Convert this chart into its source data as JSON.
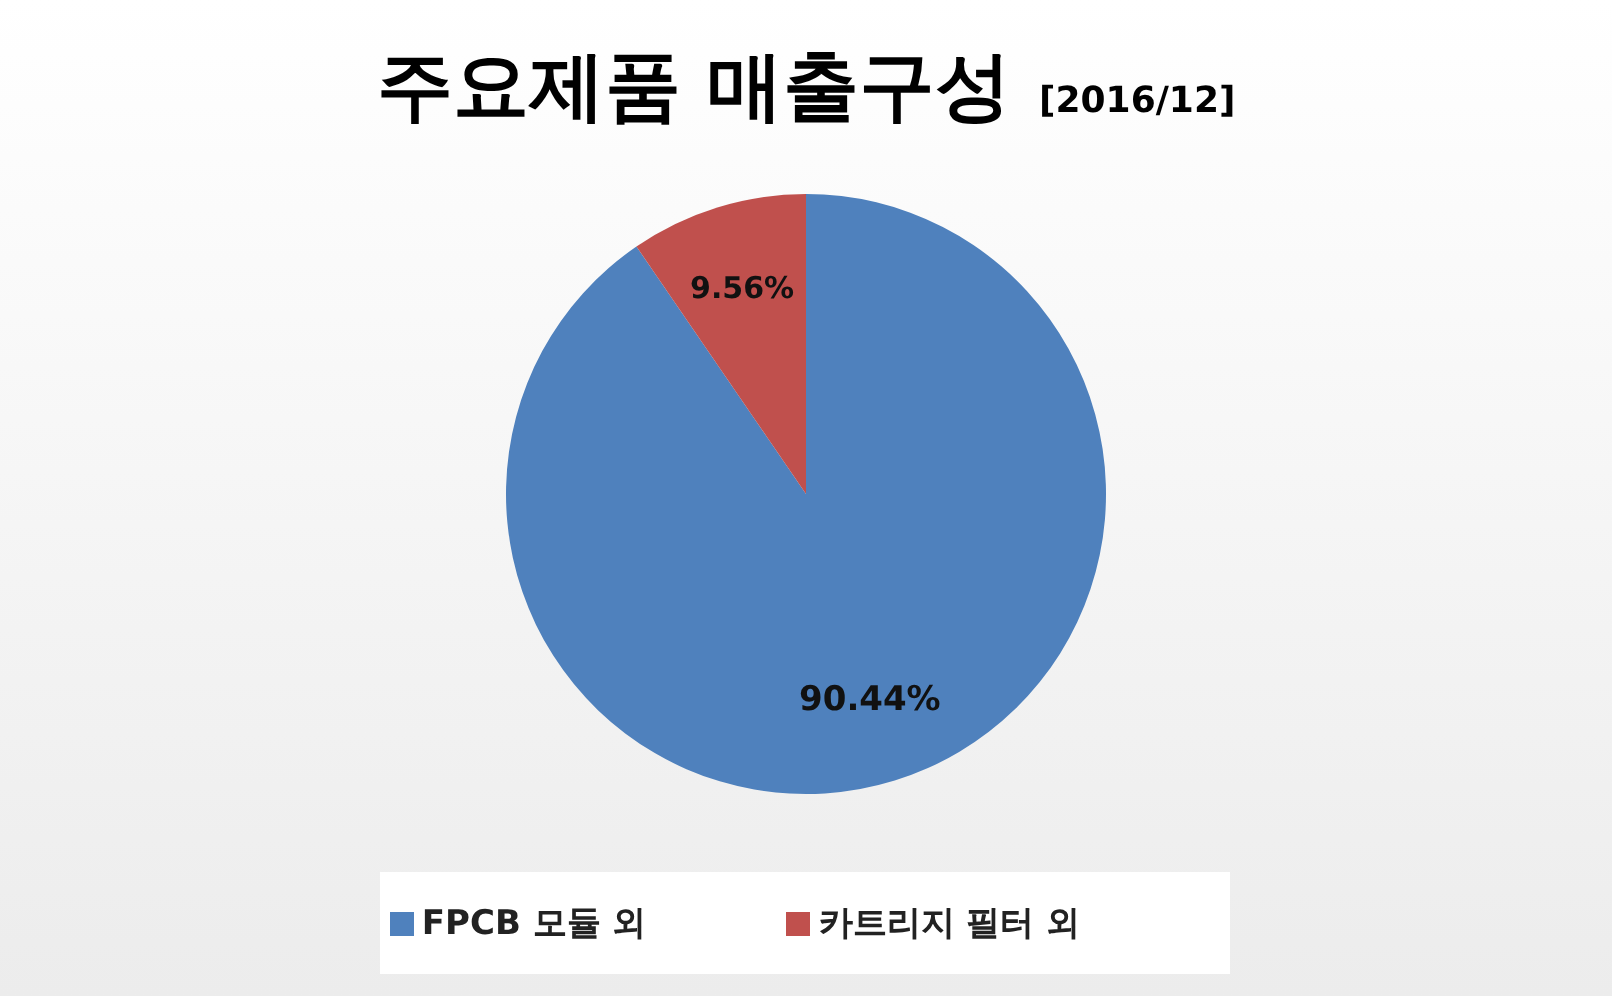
{
  "chart_data": {
    "type": "pie",
    "title": "주요제품 매출구성",
    "subtitle": "[2016/12]",
    "categories": [
      "FPCB 모듈 외",
      "카트리지 필터 외"
    ],
    "values": [
      90.44,
      9.56
    ],
    "colors": [
      "#4f81bd",
      "#c0504d"
    ],
    "value_labels": [
      "90.44%",
      "9.56%"
    ],
    "legend": "bottom"
  }
}
